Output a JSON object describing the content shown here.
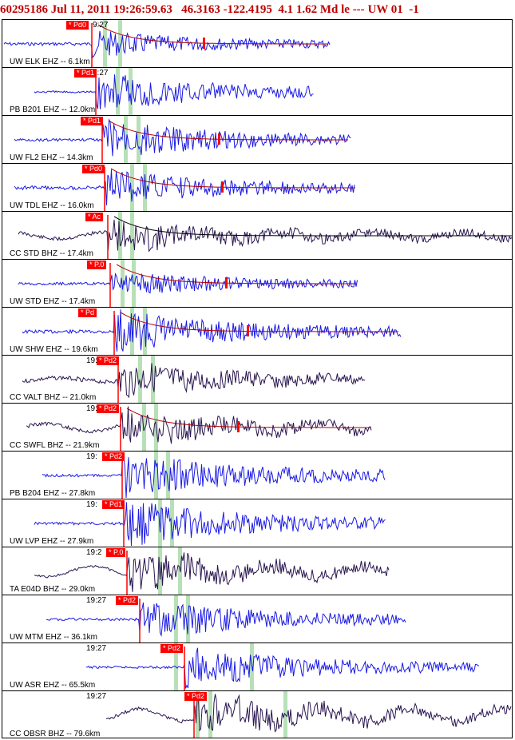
{
  "header": {
    "event_id": "60295186",
    "date": "Jul 11, 2011",
    "time": "19:26:59.63",
    "lat": "46.3163",
    "lon": "-122.4195",
    "depth": "4.1",
    "mag": "1.62",
    "mag_type": "Md",
    "type": "le",
    "dashes": "---",
    "network": "UW",
    "version": "01",
    "flag": "-1"
  },
  "traces": [
    {
      "label": "UW ELK EHZ -- 6.1km",
      "pick": "* Pd0",
      "time": "9:27",
      "color": "#1a1ae6"
    },
    {
      "label": "PB B201 EHZ -- 12.0km",
      "pick": "* Pd1",
      "time": "1:27",
      "color": "#1a1ae6"
    },
    {
      "label": "UW FL2 EHZ -- 14.3km",
      "pick": "* Pd1",
      "time": "",
      "color": "#1a1ae6"
    },
    {
      "label": "UW TDL EHZ -- 16.0km",
      "pick": "* Pd0",
      "time": "",
      "color": "#1a1ae6"
    },
    {
      "label": "CC STD BHZ -- 17.4km",
      "pick": "* Ac",
      "time": "",
      "color": "#2a1650"
    },
    {
      "label": "UW STD EHZ -- 17.4km",
      "pick": "* P.0",
      "time": "",
      "color": "#1a1ae6"
    },
    {
      "label": "UW SHW EHZ -- 19.6km",
      "pick": "* Pd",
      "time": "7",
      "color": "#1a1ae6"
    },
    {
      "label": "CC VALT BHZ -- 21.0km",
      "pick": "* Pd2",
      "time": "19:",
      "color": "#2a1650"
    },
    {
      "label": "CC SWFL BHZ -- 21.9km",
      "pick": "* Pd2",
      "time": "19:",
      "color": "#2a1650"
    },
    {
      "label": "PB B204 EHZ -- 27.8km",
      "pick": "* Pd2",
      "time": "19:",
      "color": "#1a1ae6"
    },
    {
      "label": "UW LVP EHZ -- 27.9km",
      "pick": "* Pd1",
      "time": "19:",
      "color": "#1a1ae6"
    },
    {
      "label": "TA E04D BHZ -- 29.0km",
      "pick": "* P.0",
      "time": "19:2",
      "color": "#2a1650"
    },
    {
      "label": "UW MTM EHZ -- 36.1km",
      "pick": "* Pd2",
      "time": "19:27",
      "color": "#1a1ae6"
    },
    {
      "label": "UW ASR EHZ -- 65.5km",
      "pick": "* Pd2",
      "time": "19:27",
      "color": "#1a1ae6"
    },
    {
      "label": "CC OBSR BHZ -- 79.6km",
      "pick": "* Pd2",
      "time": "19:27",
      "color": "#2a1650"
    }
  ]
}
